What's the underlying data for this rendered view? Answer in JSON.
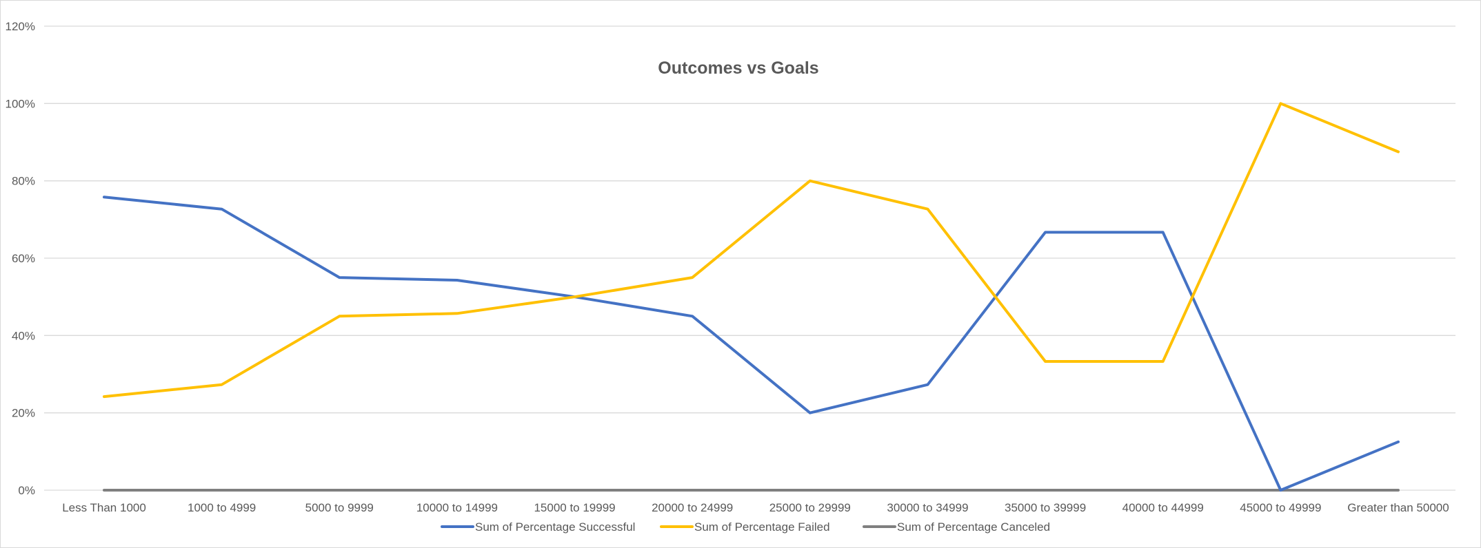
{
  "chart_data": {
    "type": "line",
    "title": "Outcomes vs Goals",
    "xlabel": "",
    "ylabel": "",
    "categories": [
      "Less Than 1000",
      "1000 to 4999",
      "5000 to 9999",
      "10000 to 14999",
      "15000 to 19999",
      "20000 to 24999",
      "25000 to 29999",
      "30000 to 34999",
      "35000 to 39999",
      "40000 to 44999",
      "45000 to 49999",
      "Greater than 50000"
    ],
    "series": [
      {
        "name": "Sum of Percentage Successful",
        "color": "#4472C4",
        "values": [
          0.758,
          0.727,
          0.55,
          0.543,
          0.5,
          0.45,
          0.2,
          0.273,
          0.667,
          0.667,
          0.0,
          0.125
        ]
      },
      {
        "name": "Sum of Percentage Failed",
        "color": "#FFC000",
        "values": [
          0.242,
          0.273,
          0.45,
          0.457,
          0.5,
          0.55,
          0.8,
          0.727,
          0.333,
          0.333,
          1.0,
          0.875
        ]
      },
      {
        "name": "Sum of Percentage Canceled",
        "color": "#7F7F7F",
        "values": [
          0,
          0,
          0,
          0,
          0,
          0,
          0,
          0,
          0,
          0,
          0,
          0
        ]
      }
    ],
    "ylim": [
      0,
      1.2
    ],
    "yticks": [
      0,
      0.2,
      0.4,
      0.6,
      0.8,
      1.0,
      1.2
    ],
    "ytick_labels": [
      "0%",
      "20%",
      "40%",
      "60%",
      "80%",
      "100%",
      "120%"
    ],
    "grid": true,
    "legend_position": "bottom"
  }
}
